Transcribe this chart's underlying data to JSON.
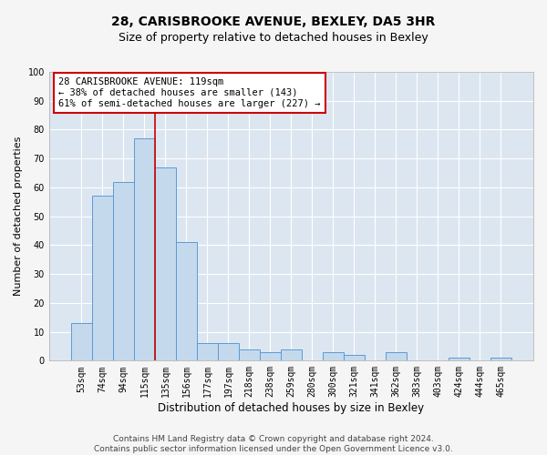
{
  "title_line1": "28, CARISBROOKE AVENUE, BEXLEY, DA5 3HR",
  "title_line2": "Size of property relative to detached houses in Bexley",
  "xlabel": "Distribution of detached houses by size in Bexley",
  "ylabel": "Number of detached properties",
  "categories": [
    "53sqm",
    "74sqm",
    "94sqm",
    "115sqm",
    "135sqm",
    "156sqm",
    "177sqm",
    "197sqm",
    "218sqm",
    "238sqm",
    "259sqm",
    "280sqm",
    "300sqm",
    "321sqm",
    "341sqm",
    "362sqm",
    "383sqm",
    "403sqm",
    "424sqm",
    "444sqm",
    "465sqm"
  ],
  "values": [
    13,
    57,
    62,
    77,
    67,
    41,
    6,
    6,
    4,
    3,
    4,
    0,
    3,
    2,
    0,
    3,
    0,
    0,
    1,
    0,
    1
  ],
  "bar_color": "#c5d9ed",
  "bar_edge_color": "#5b9bd5",
  "background_color": "#dce6f1",
  "grid_color": "#ffffff",
  "annotation_text_line1": "28 CARISBROOKE AVENUE: 119sqm",
  "annotation_text_line2": "← 38% of detached houses are smaller (143)",
  "annotation_text_line3": "61% of semi-detached houses are larger (227) →",
  "annotation_box_facecolor": "#ffffff",
  "annotation_box_edgecolor": "#cc0000",
  "red_line_color": "#cc0000",
  "red_line_x": 3.5,
  "ylim": [
    0,
    100
  ],
  "yticks": [
    0,
    10,
    20,
    30,
    40,
    50,
    60,
    70,
    80,
    90,
    100
  ],
  "footer_line1": "Contains HM Land Registry data © Crown copyright and database right 2024.",
  "footer_line2": "Contains public sector information licensed under the Open Government Licence v3.0.",
  "title1_fontsize": 10,
  "title2_fontsize": 9,
  "xlabel_fontsize": 8.5,
  "ylabel_fontsize": 8,
  "tick_fontsize": 7,
  "annotation_fontsize": 7.5,
  "footer_fontsize": 6.5,
  "fig_facecolor": "#f5f5f5"
}
